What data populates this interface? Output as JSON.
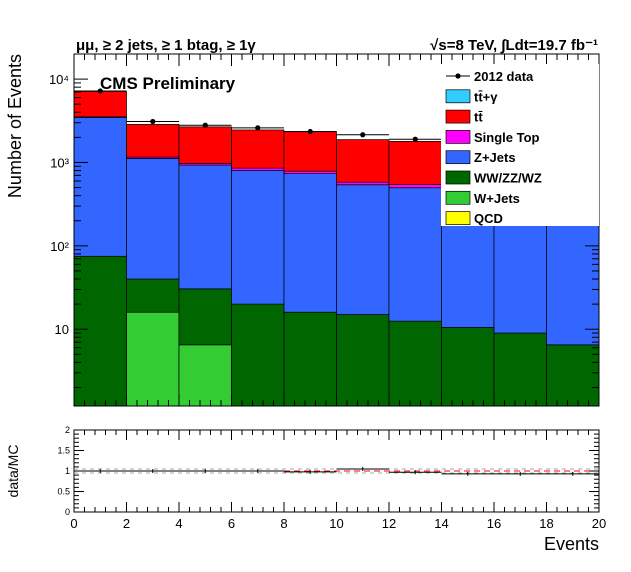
{
  "chart_data": [
    {
      "type": "bar",
      "stacked": true,
      "log_y": true,
      "title": "CMS Preliminary",
      "header_left": "μμ, ≥ 2 jets, ≥ 1 btag, ≥ 1γ",
      "header_right": "√s=8 TeV,  ∫Ldt=19.7 fb⁻¹",
      "ylabel": "Number of Events",
      "ylim": [
        1.2,
        20000
      ],
      "yticks": [
        {
          "v": 10,
          "label": "10"
        },
        {
          "v": 100,
          "label": "10²"
        },
        {
          "v": 1000,
          "label": "10³"
        },
        {
          "v": 10000,
          "label": "10⁴"
        }
      ],
      "bin_edges": [
        0,
        2,
        4,
        6,
        8,
        10,
        12,
        14,
        16,
        18,
        20
      ],
      "legend_position": "top-right",
      "series": [
        {
          "name": "QCD",
          "color": "#ffff00",
          "values": [
            0,
            0,
            0,
            0,
            0,
            0,
            0,
            0,
            0,
            0
          ]
        },
        {
          "name": "W+Jets",
          "color": "#33cc33",
          "values": [
            0,
            16,
            6.5,
            0,
            0,
            0,
            0,
            0,
            0,
            0
          ]
        },
        {
          "name": "WW/ZZ/WZ",
          "color": "#006600",
          "values": [
            75,
            24,
            24,
            20,
            16,
            15,
            12.5,
            10.5,
            9,
            6.5
          ]
        },
        {
          "name": "Z+Jets",
          "color": "#3366ff",
          "values": [
            3400,
            1080,
            900,
            780,
            720,
            525,
            485,
            455,
            395,
            355
          ]
        },
        {
          "name": "Single Top",
          "color": "#ff00ff",
          "values": [
            50,
            40,
            45,
            55,
            50,
            40,
            45,
            40,
            40,
            50
          ]
        },
        {
          "name": "tt̄",
          "color": "#ff0000",
          "values": [
            3600,
            1700,
            1700,
            1600,
            1550,
            1300,
            1250,
            1050,
            900,
            900
          ]
        },
        {
          "name": "tt̄+γ",
          "color": "#33ccff",
          "values": [
            0,
            0,
            0,
            0,
            0,
            0,
            0,
            0,
            0,
            0
          ]
        }
      ],
      "data_series": {
        "name": "2012 data",
        "x": [
          1,
          3,
          5,
          7,
          9,
          11,
          13,
          15,
          17,
          19
        ],
        "y": [
          7200,
          3100,
          2800,
          2600,
          2350,
          2150,
          1900,
          1650,
          1450,
          1230
        ]
      }
    },
    {
      "type": "line",
      "ylabel": "data/MC",
      "xlabel": "Events",
      "xlim": [
        0,
        20
      ],
      "ylim": [
        0,
        2
      ],
      "xticks": [
        "0",
        "2",
        "4",
        "6",
        "8",
        "10",
        "12",
        "14",
        "16",
        "18",
        "20"
      ],
      "yticks": [
        "0",
        "0.5",
        "1",
        "1.5",
        "2"
      ],
      "ratio": [
        1.0,
        1.0,
        1.0,
        1.0,
        0.98,
        1.05,
        0.97,
        0.93,
        0.93,
        0.93
      ]
    }
  ]
}
